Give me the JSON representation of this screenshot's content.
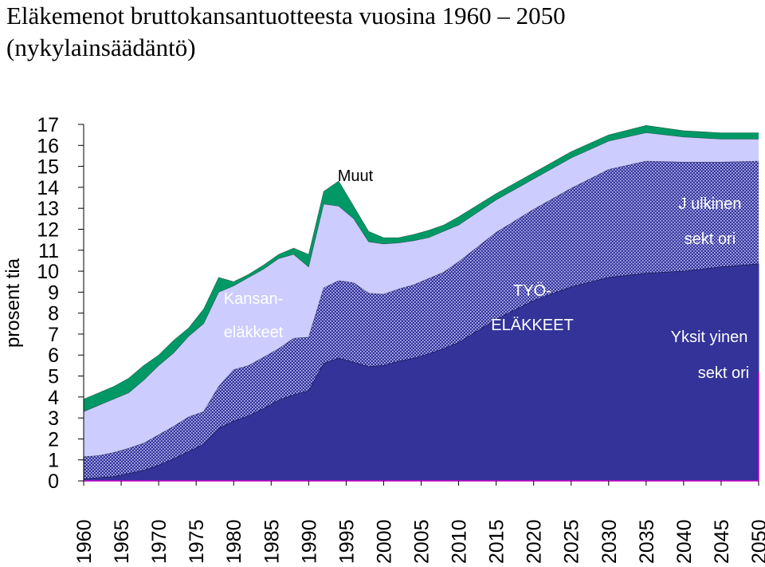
{
  "title_line1": "Eläkemenot bruttokansantuotteesta vuosina 1960 – 2050",
  "title_line2": "(nykylainsäädäntö)",
  "chart_data": {
    "type": "area",
    "stacked": true,
    "ylabel": "prosent tia",
    "ylim": [
      0,
      17
    ],
    "yticks": [
      0,
      1,
      2,
      3,
      4,
      5,
      6,
      7,
      8,
      9,
      10,
      11,
      12,
      13,
      14,
      15,
      16,
      17
    ],
    "xticks": [
      1960,
      1965,
      1970,
      1975,
      1980,
      1985,
      1990,
      1995,
      2000,
      2005,
      2010,
      2015,
      2020,
      2025,
      2030,
      2035,
      2040,
      2045,
      2050
    ],
    "x": [
      1960,
      1962,
      1964,
      1966,
      1968,
      1970,
      1972,
      1974,
      1976,
      1978,
      1980,
      1982,
      1984,
      1986,
      1988,
      1990,
      1992,
      1994,
      1996,
      1998,
      2000,
      2002,
      2004,
      2006,
      2008,
      2010,
      2015,
      2020,
      2025,
      2030,
      2035,
      2040,
      2045,
      2050
    ],
    "cumulative": true,
    "series": [
      {
        "key": "private",
        "color": "#333399",
        "values": [
          0.1,
          0.15,
          0.2,
          0.35,
          0.5,
          0.75,
          1.05,
          1.4,
          1.75,
          2.5,
          2.85,
          3.1,
          3.45,
          3.85,
          4.1,
          4.3,
          5.6,
          5.85,
          5.65,
          5.45,
          5.5,
          5.7,
          5.85,
          6.05,
          6.3,
          6.6,
          7.7,
          8.6,
          9.25,
          9.7,
          9.9,
          10.0,
          10.2,
          10.35
        ]
      },
      {
        "key": "public",
        "color": "#333399",
        "pattern": true,
        "values": [
          1.15,
          1.2,
          1.35,
          1.55,
          1.8,
          2.2,
          2.6,
          3.05,
          3.3,
          4.5,
          5.3,
          5.5,
          5.9,
          6.3,
          6.8,
          6.85,
          9.2,
          9.55,
          9.45,
          8.95,
          8.9,
          9.15,
          9.35,
          9.65,
          9.95,
          10.45,
          11.85,
          12.95,
          13.95,
          14.85,
          15.25,
          15.2,
          15.2,
          15.25
        ]
      },
      {
        "name": "Kansan-eläkkeet",
        "key": "kansanelakkeet",
        "color": "#ccccff",
        "values": [
          3.3,
          3.6,
          3.9,
          4.2,
          4.8,
          5.5,
          6.1,
          6.9,
          7.5,
          9.0,
          9.3,
          9.7,
          10.1,
          10.6,
          10.8,
          10.2,
          13.2,
          13.1,
          12.5,
          11.4,
          11.3,
          11.35,
          11.45,
          11.6,
          11.9,
          12.2,
          13.4,
          14.4,
          15.4,
          16.2,
          16.6,
          16.4,
          16.3,
          16.3
        ]
      },
      {
        "name": "Muut",
        "key": "muut",
        "color": "#009966",
        "values": [
          3.9,
          4.2,
          4.5,
          4.9,
          5.5,
          6.0,
          6.7,
          7.3,
          8.2,
          9.7,
          9.5,
          9.85,
          10.3,
          10.8,
          11.1,
          10.8,
          13.8,
          14.3,
          13.1,
          11.9,
          11.6,
          11.6,
          11.75,
          11.95,
          12.2,
          12.6,
          13.7,
          14.7,
          15.7,
          16.5,
          16.95,
          16.7,
          16.6,
          16.6
        ]
      }
    ],
    "annotations": [
      {
        "key": "muut",
        "text": "Muut",
        "color": "#000000"
      },
      {
        "key": "kansan1",
        "text": "Kansan-",
        "color": "#ffffff"
      },
      {
        "key": "kansan2",
        "text": "eläkkeet",
        "color": "#ffffff"
      },
      {
        "key": "tyo1",
        "text": "TYÖ-",
        "color": "#ffffff"
      },
      {
        "key": "tyo2",
        "text": "ELÄKKEET",
        "color": "#ffffff"
      },
      {
        "key": "julk1",
        "text": "J ulkinen",
        "color": "#ffffff"
      },
      {
        "key": "julk2",
        "text": "sekt ori",
        "color": "#ffffff"
      },
      {
        "key": "yks1",
        "text": "Yksit yinen",
        "color": "#ffffff"
      },
      {
        "key": "yks2",
        "text": "sekt ori",
        "color": "#ffffff"
      }
    ],
    "grid": false
  }
}
